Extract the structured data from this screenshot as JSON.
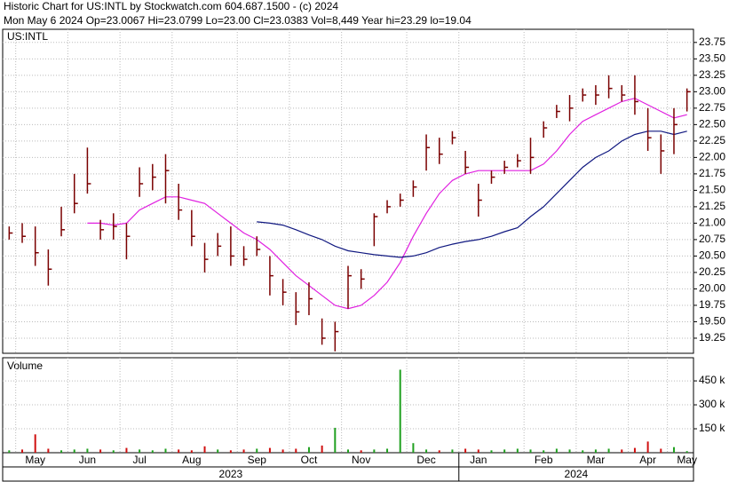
{
  "chart_data": {
    "type": "ohlc",
    "title": "Historic Chart for US:INTL by Stockwatch.com 604.687.1500 - (c) 2024",
    "subtitle": "Mon May  6 2024   Op=23.0067   Hi=23.0799   Lo=23.00   Cl=23.0383   Vol=8,449   Year hi=23.29   lo=19.04",
    "symbol_label": "US:INTL",
    "categories": [
      null,
      null,
      "May",
      null,
      null,
      null,
      "Jun",
      null,
      null,
      null,
      "Jul",
      null,
      null,
      null,
      "Aug",
      null,
      null,
      null,
      null,
      "Sep",
      null,
      null,
      null,
      "Oct",
      null,
      null,
      null,
      "Nov",
      null,
      null,
      null,
      null,
      "Dec",
      null,
      null,
      null,
      "Jan",
      null,
      null,
      null,
      null,
      "Feb",
      null,
      null,
      null,
      "Mar",
      null,
      null,
      null,
      "Apr",
      null,
      null,
      "May"
    ],
    "years": [
      "2023",
      "2024"
    ],
    "high": [
      20.95,
      21.0,
      20.95,
      20.6,
      21.25,
      21.75,
      22.15,
      21.05,
      21.15,
      21.0,
      21.85,
      21.9,
      22.05,
      21.6,
      21.2,
      20.7,
      20.85,
      20.95,
      20.65,
      20.8,
      20.5,
      20.15,
      19.95,
      20.1,
      19.55,
      19.5,
      20.35,
      20.3,
      21.15,
      21.35,
      21.45,
      21.65,
      22.35,
      22.3,
      22.4,
      22.1,
      21.6,
      21.8,
      21.95,
      22.05,
      22.3,
      22.55,
      22.8,
      22.95,
      23.05,
      23.1,
      23.25,
      23.1,
      23.25,
      22.75,
      22.35,
      22.75,
      23.05
    ],
    "low": [
      20.75,
      20.7,
      20.35,
      20.05,
      20.8,
      21.15,
      21.45,
      20.75,
      20.75,
      20.45,
      21.4,
      21.5,
      21.3,
      21.05,
      20.65,
      20.25,
      20.5,
      20.35,
      20.35,
      20.5,
      19.9,
      19.75,
      19.45,
      19.6,
      19.15,
      19.05,
      19.7,
      20.0,
      20.65,
      21.15,
      21.25,
      21.4,
      21.8,
      21.9,
      22.2,
      21.75,
      21.1,
      21.6,
      21.75,
      21.85,
      21.75,
      22.3,
      22.6,
      22.55,
      22.85,
      22.8,
      22.9,
      22.85,
      22.65,
      22.1,
      21.75,
      22.05,
      22.7
    ],
    "close": [
      20.85,
      20.8,
      20.55,
      20.3,
      20.9,
      21.3,
      21.6,
      20.9,
      20.95,
      20.8,
      21.6,
      21.7,
      21.8,
      21.2,
      20.8,
      20.45,
      20.65,
      20.5,
      20.45,
      20.6,
      20.2,
      19.95,
      19.65,
      19.85,
      19.25,
      19.35,
      20.2,
      20.15,
      21.1,
      21.25,
      21.35,
      21.55,
      22.15,
      22.05,
      22.3,
      21.85,
      21.35,
      21.7,
      21.85,
      21.95,
      22.0,
      22.45,
      22.7,
      22.75,
      22.95,
      22.95,
      23.05,
      22.95,
      22.85,
      22.3,
      22.1,
      22.5,
      23.0
    ],
    "color": "#7a0000",
    "moving_averages": [
      {
        "color": "#e020e0",
        "values": [
          null,
          null,
          null,
          null,
          null,
          null,
          21.0,
          21.0,
          20.97,
          21.0,
          21.2,
          21.3,
          21.4,
          21.4,
          21.35,
          21.3,
          21.15,
          21.0,
          20.85,
          20.75,
          20.6,
          20.4,
          20.2,
          20.05,
          19.9,
          19.75,
          19.7,
          19.75,
          19.9,
          20.1,
          20.4,
          20.8,
          21.15,
          21.45,
          21.65,
          21.75,
          21.8,
          21.8,
          21.8,
          21.8,
          21.8,
          21.9,
          22.1,
          22.35,
          22.55,
          22.65,
          22.75,
          22.85,
          22.9,
          22.8,
          22.7,
          22.6,
          22.65
        ]
      },
      {
        "color": "#101880",
        "values": [
          null,
          null,
          null,
          null,
          null,
          null,
          null,
          null,
          null,
          null,
          null,
          null,
          null,
          null,
          null,
          null,
          null,
          null,
          null,
          21.02,
          21.0,
          20.97,
          20.9,
          20.82,
          20.75,
          20.65,
          20.58,
          20.55,
          20.52,
          20.5,
          20.48,
          20.5,
          20.55,
          20.63,
          20.68,
          20.72,
          20.75,
          20.8,
          20.87,
          20.93,
          21.1,
          21.25,
          21.45,
          21.65,
          21.85,
          22.0,
          22.1,
          22.25,
          22.35,
          22.4,
          22.4,
          22.35,
          22.4
        ]
      }
    ],
    "ylim": [
      19.02,
      23.95
    ],
    "yticks": [
      19.25,
      {
        "value": 19.5,
        "label": "19.50"
      },
      19.75,
      {
        "value": 20,
        "label": "20.00"
      },
      20.25,
      {
        "value": 20.5,
        "label": "20.50"
      },
      20.75,
      {
        "value": 21,
        "label": "21.00"
      },
      21.25,
      {
        "value": 21.5,
        "label": "21.50"
      },
      21.75,
      {
        "value": 22,
        "label": "22.00"
      },
      22.25,
      {
        "value": 22.5,
        "label": "22.50"
      },
      22.75,
      {
        "value": 23,
        "label": "23.00"
      },
      23.25,
      {
        "value": 23.5,
        "label": "23.50"
      },
      23.75
    ],
    "grid": true,
    "volume": {
      "label": "Volume",
      "values": [
        15000,
        20000,
        115000,
        25000,
        15000,
        20000,
        25000,
        20000,
        15000,
        30000,
        20000,
        15000,
        25000,
        20000,
        15000,
        40000,
        20000,
        15000,
        20000,
        25000,
        30000,
        20000,
        25000,
        35000,
        45000,
        156000,
        20000,
        15000,
        20000,
        25000,
        520000,
        60000,
        20000,
        15000,
        20000,
        25000,
        20000,
        15000,
        20000,
        25000,
        20000,
        15000,
        25000,
        20000,
        15000,
        20000,
        25000,
        20000,
        30000,
        70000,
        25000,
        35000,
        10000
      ],
      "up_color": "#20a020",
      "down_color": "#d01010",
      "ylim": [
        0,
        595000
      ],
      "yticks": [
        {
          "value": 150000,
          "label": "150 k"
        },
        {
          "value": 300000,
          "label": "300 k"
        },
        {
          "value": 450000,
          "label": "450 k"
        }
      ]
    }
  }
}
